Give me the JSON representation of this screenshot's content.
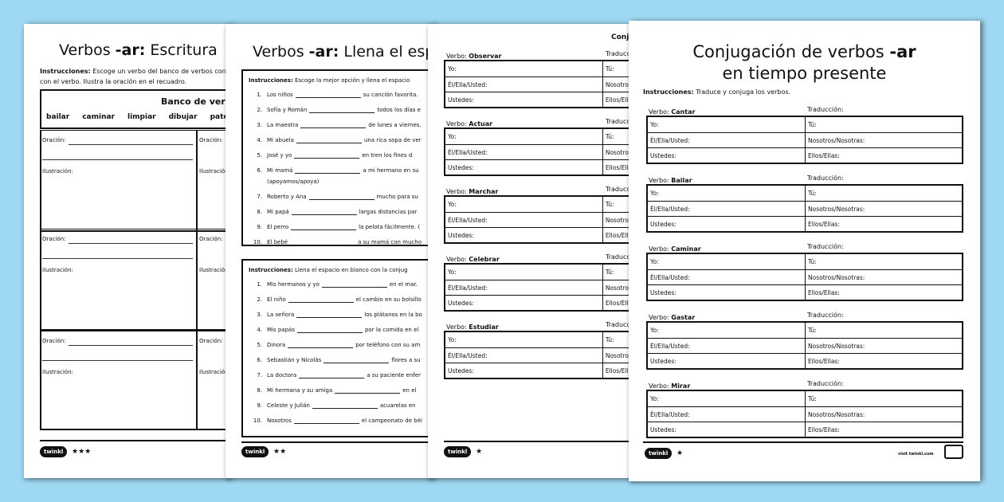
{
  "colors": {
    "background": "#9ed8f3",
    "page": "#ffffff",
    "ink": "#111111"
  },
  "page1": {
    "title_pre": "Verbos ",
    "title_bold": "-ar:",
    "title_post": " Escritura",
    "instructions_label": "Instrucciones:",
    "instructions_line1": " Escoge un verbo del banco de verbos con",
    "instructions_line2": "con el verbo. Ilustra la oración en el recuadro.",
    "bank_title": "Banco de verbos",
    "bank_verbs": [
      "bailar",
      "caminar",
      "limpiar",
      "dibujar",
      "patear"
    ],
    "oracion": "Oración:",
    "ilustracion": "Ilustración:",
    "stars": "★★★",
    "logo": "twinkl"
  },
  "page2": {
    "title_pre": "Verbos ",
    "title_bold": "-ar:",
    "title_post": " Llena el espacio",
    "section1": {
      "instructions_label": "Instrucciones:",
      "instructions": " Escoge la mejor opción y llena el espacio",
      "items": [
        {
          "n": "1.",
          "pre": "Los niños",
          "post": "su canción favorita."
        },
        {
          "n": "2.",
          "pre": "Sofía y Román",
          "post": "todos los días e"
        },
        {
          "n": "3.",
          "pre": "La maestra",
          "post": "de lunes a viernes."
        },
        {
          "n": "4.",
          "pre": "Mi abuela",
          "post": "una rica sopa de ver"
        },
        {
          "n": "5.",
          "pre": "José y yo",
          "post": "en tren los fines d"
        },
        {
          "n": "6.",
          "pre": "Mi mamá",
          "post": "a mi hermano en su",
          "extra": "(apoyamos/apoya)"
        },
        {
          "n": "7.",
          "pre": "Roberto y Ana",
          "post": "mucho para su"
        },
        {
          "n": "8.",
          "pre": "Mi papá",
          "post": "largas distancias par"
        },
        {
          "n": "9.",
          "pre": "El perro",
          "post": "la pelota fácilmente. ("
        },
        {
          "n": "10.",
          "pre": "El bebé",
          "post": "a su mamá con mucho"
        }
      ]
    },
    "section2": {
      "instructions_label": "Instrucciones:",
      "instructions": " Llena el espacio en blanco con la conjug",
      "items": [
        {
          "n": "1.",
          "pre": "Mis hermanos y yo",
          "post": "en el mar."
        },
        {
          "n": "2.",
          "pre": "El niño",
          "post": "el cambio en su bolsillo"
        },
        {
          "n": "3.",
          "pre": "La señora",
          "post": "los plátanos en la bo"
        },
        {
          "n": "4.",
          "pre": "Mis papás",
          "post": "por la comida en el"
        },
        {
          "n": "5.",
          "pre": "Dinora",
          "post": "por teléfono con su am"
        },
        {
          "n": "6.",
          "pre": "Sebastián y Nicolás",
          "post": "flores a su"
        },
        {
          "n": "7.",
          "pre": "La doctora",
          "post": "a su paciente enfer"
        },
        {
          "n": "8.",
          "pre": "Mi hermana y su amiga",
          "post": "en el"
        },
        {
          "n": "9.",
          "pre": "Celeste y Julián",
          "post": "acuarelas en"
        },
        {
          "n": "10.",
          "pre": "Nosotros",
          "post": "el campeonato de béi"
        }
      ]
    },
    "stars": "★★",
    "logo": "twinkl"
  },
  "page3": {
    "title": "Conj",
    "verb_label": "Verbo: ",
    "translation": "Traducción:",
    "verbs": [
      "Observar",
      "Actuar",
      "Marchar",
      "Celebrar",
      "Estudiar"
    ],
    "cells": [
      [
        "Yo:",
        "Tú:"
      ],
      [
        "Él/Ella/Usted:",
        "Nosotros/Nosotras:"
      ],
      [
        "Ustedes:",
        "Ellos/Ellas:"
      ]
    ],
    "stars": "★",
    "logo": "twinkl"
  },
  "page4": {
    "title_line1_pre": "Conjugación de verbos ",
    "title_line1_bold": "-ar",
    "title_line2": "en tiempo presente",
    "instructions_label": "Instrucciones:",
    "instructions": " Traduce y conjuga los verbos.",
    "verb_label": "Verbo: ",
    "translation": "Traducción:",
    "verbs": [
      "Cantar",
      "Bailar",
      "Caminar",
      "Gastar",
      "Mirar"
    ],
    "cells": [
      [
        "Yo:",
        "Tú:"
      ],
      [
        "Él/Ella/Usted:",
        "Nosotros/Nosotras:"
      ],
      [
        "Ustedes:",
        "Ellos/Ellas:"
      ]
    ],
    "stars": "★",
    "logo": "twinkl",
    "footer_url": "visit twinkl.com"
  }
}
